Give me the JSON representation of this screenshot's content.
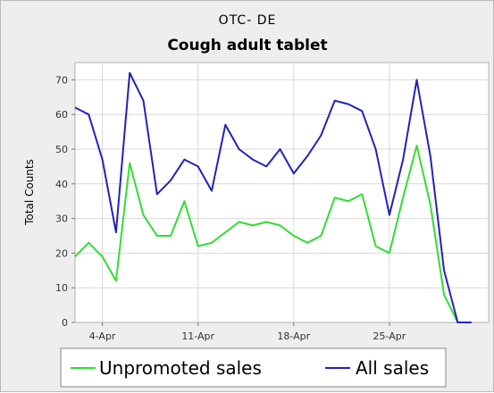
{
  "chart_data": {
    "type": "line",
    "title": "Cough adult tablet",
    "subtitle": "OTC- DE",
    "xlabel": "",
    "ylabel": "Total Counts",
    "ylim": [
      0,
      75
    ],
    "yticks": [
      0,
      10,
      20,
      30,
      40,
      50,
      60,
      70
    ],
    "x": [
      "2-Apr",
      "3-Apr",
      "4-Apr",
      "5-Apr",
      "6-Apr",
      "7-Apr",
      "8-Apr",
      "9-Apr",
      "10-Apr",
      "11-Apr",
      "12-Apr",
      "13-Apr",
      "14-Apr",
      "15-Apr",
      "16-Apr",
      "17-Apr",
      "18-Apr",
      "19-Apr",
      "20-Apr",
      "21-Apr",
      "22-Apr",
      "23-Apr",
      "24-Apr",
      "25-Apr",
      "26-Apr",
      "27-Apr",
      "28-Apr",
      "29-Apr",
      "30-Apr",
      "1-May"
    ],
    "x_tick_labels": [
      "4-Apr",
      "11-Apr",
      "18-Apr",
      "25-Apr"
    ],
    "x_tick_labels_visible": [
      "4-Apr",
      "11-Apr",
      "18-Apr",
      "25-Apr"
    ],
    "grid": true,
    "legend_position": "bottom",
    "series": [
      {
        "name": "Unpromoted sales",
        "color": "#33dd33",
        "values": [
          19,
          23,
          19,
          12,
          46,
          31,
          25,
          25,
          35,
          22,
          23,
          26,
          29,
          28,
          29,
          28,
          25,
          23,
          25,
          36,
          35,
          37,
          22,
          20,
          36,
          51,
          34,
          8,
          0,
          0
        ]
      },
      {
        "name": "All sales",
        "color": "#2222bb",
        "values": [
          62,
          60,
          47,
          26,
          72,
          64,
          37,
          41,
          47,
          45,
          38,
          57,
          50,
          47,
          45,
          50,
          43,
          48,
          54,
          64,
          63,
          61,
          50,
          31,
          47,
          70,
          48,
          15,
          0,
          0
        ]
      }
    ]
  }
}
